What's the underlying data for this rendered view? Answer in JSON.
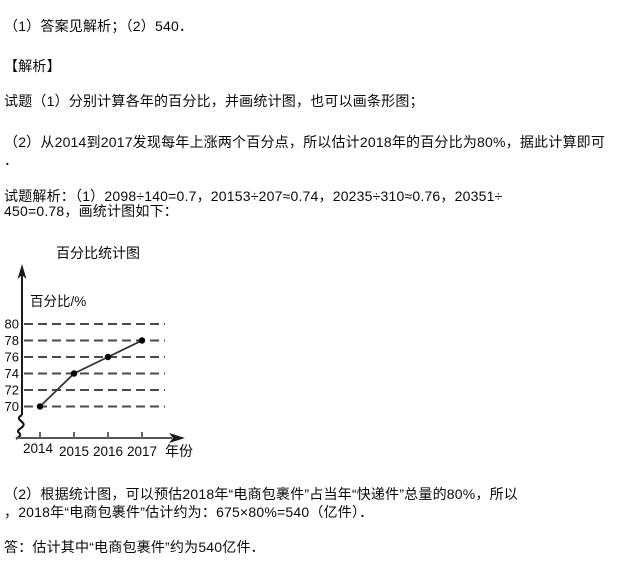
{
  "page": {
    "background": "#ffffff",
    "text_color": "#0a0a0a"
  },
  "solution": {
    "answer_line": "（1）答案见解析；（2）540．",
    "analysis_header": "【解析】",
    "point_1": "试题（1）分别计算各年的百分比，并画统计图，也可以画条形图；",
    "point_2_line1": "（2）从2014到2017发现每年上涨两个百分点，所以估计2018年的百分比为80%，据此计算即可",
    "point_2_line2": "．",
    "detail_line1": "试题解析：（1）2098÷140=0.7，20153÷207≈0.74，20235÷310≈0.76，20351÷",
    "detail_line2": "450=0.78，画统计图如下：",
    "conclusion_line1": "（2）根据统计图，可以预估2018年“电商包裹件”占当年“快递件”总量的80%，所以",
    "conclusion_line2": "，2018年“电商包裹件”估计约为：675×80%=540（亿件）．",
    "final_answer": "答：估计其中“电商包裹件”约为540亿件．"
  },
  "chart_data": {
    "type": "line",
    "title": "百分比统计图",
    "ylabel": "百分比/%",
    "xlabel": "年份",
    "categories": [
      "2014",
      "2015",
      "2016",
      "2017"
    ],
    "values": [
      70,
      74,
      76,
      78
    ],
    "yticks": [
      80,
      78,
      76,
      74,
      72,
      70
    ],
    "ylim": [
      70,
      80
    ],
    "grid": "dashed-horizontal",
    "axis_break": true,
    "legend": "none",
    "colors": {
      "axis": "#1a1a1a",
      "gridline": "#4a4a4a",
      "line": "#333333",
      "marker": "#000000"
    }
  }
}
